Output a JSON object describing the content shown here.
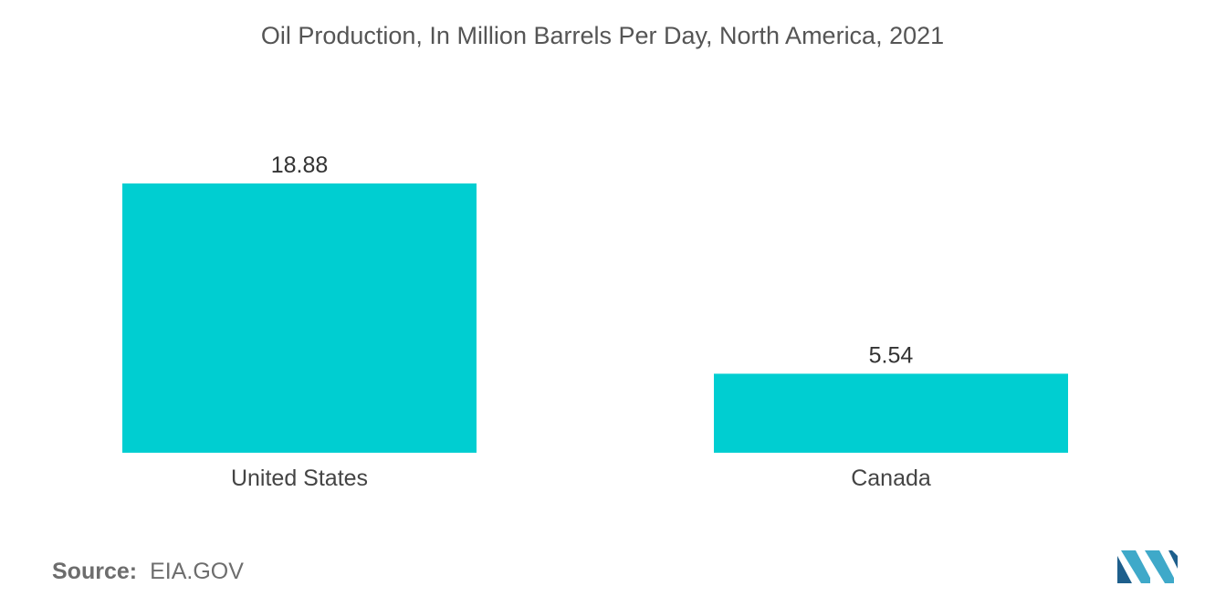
{
  "chart_data": {
    "type": "bar",
    "title": "Oil Production, In Million Barrels Per Day, North America, 2021",
    "categories": [
      "United States",
      "Canada"
    ],
    "values": [
      18.88,
      5.54
    ],
    "value_labels": [
      "18.88",
      "5.54"
    ],
    "xlabel": "",
    "ylabel": "",
    "ylim": [
      0,
      18.88
    ],
    "grid": false,
    "legend": "none",
    "bar_color": "#00CED1"
  },
  "source": {
    "label": "Source:",
    "value": "EIA.GOV"
  },
  "logo": {
    "name": "mordor-intelligence-logo-icon",
    "colors": [
      "#1E5F8C",
      "#3FA9C9"
    ]
  }
}
